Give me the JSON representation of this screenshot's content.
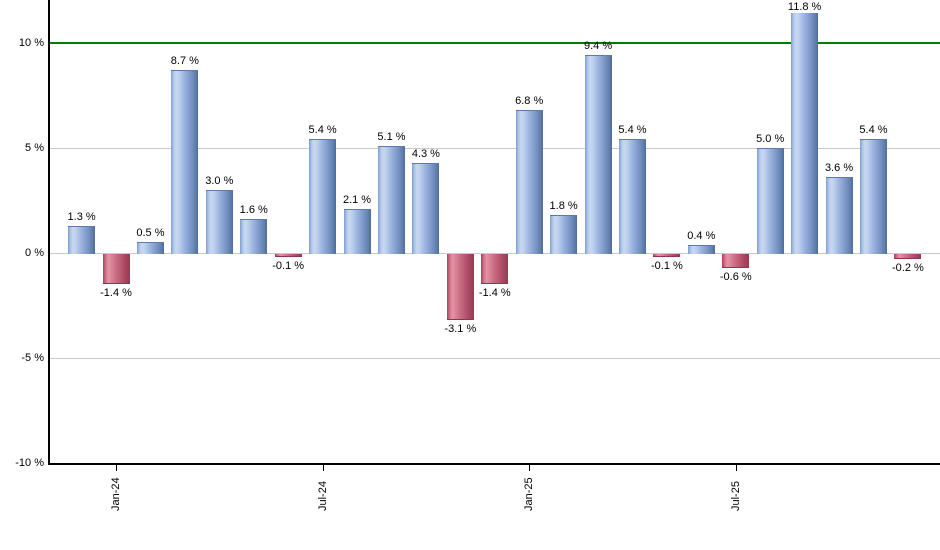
{
  "chart_data": {
    "type": "bar",
    "title": "",
    "xlabel": "",
    "ylabel": "",
    "unit": "%",
    "values": [
      1.3,
      -1.4,
      0.5,
      8.7,
      3.0,
      1.6,
      -0.1,
      5.4,
      2.1,
      5.1,
      4.3,
      -3.1,
      -1.4,
      6.8,
      1.8,
      9.4,
      5.4,
      -0.1,
      0.4,
      -0.6,
      5.0,
      11.8,
      3.6,
      5.4,
      -0.2
    ],
    "bar_value_labels": [
      "1.3 %",
      "-1.4 %",
      "0.5 %",
      "8.7 %",
      "3.0 %",
      "1.6 %",
      "-0.1 %",
      "5.4 %",
      "2.1 %",
      "5.1 %",
      "4.3 %",
      "-3.1 %",
      "-1.4 %",
      "6.8 %",
      "1.8 %",
      "9.4 %",
      "5.4 %",
      "-0.1 %",
      "0.4 %",
      "-0.6 %",
      "5.0 %",
      "11.8 %",
      "3.6 %",
      "5.4 %",
      "-0.2 %"
    ],
    "x_ticks": [
      {
        "bar_index": 1,
        "label": "Jan-24"
      },
      {
        "bar_index": 7,
        "label": "Jul-24"
      },
      {
        "bar_index": 13,
        "label": "Jan-25"
      },
      {
        "bar_index": 19,
        "label": "Jul-25"
      }
    ],
    "y_ticks": [
      {
        "value": 10,
        "label": "10 %"
      },
      {
        "value": 5,
        "label": "5 %"
      },
      {
        "value": 0,
        "label": "0 %"
      },
      {
        "value": -5,
        "label": "-5 %"
      },
      {
        "value": -10,
        "label": "-10 %"
      }
    ],
    "ylim": [
      -10.1,
      12.0
    ],
    "grid": true,
    "legend": "none",
    "reference_line": {
      "value": 10,
      "color": "#007d00"
    },
    "colors": {
      "positive_bar": "#92b1de",
      "negative_bar": "#c75e77",
      "gridline": "#c9c9c9",
      "axis": "#000000",
      "reference_line": "#007d00",
      "label_text": "#000000",
      "background": "#ffffff"
    }
  }
}
